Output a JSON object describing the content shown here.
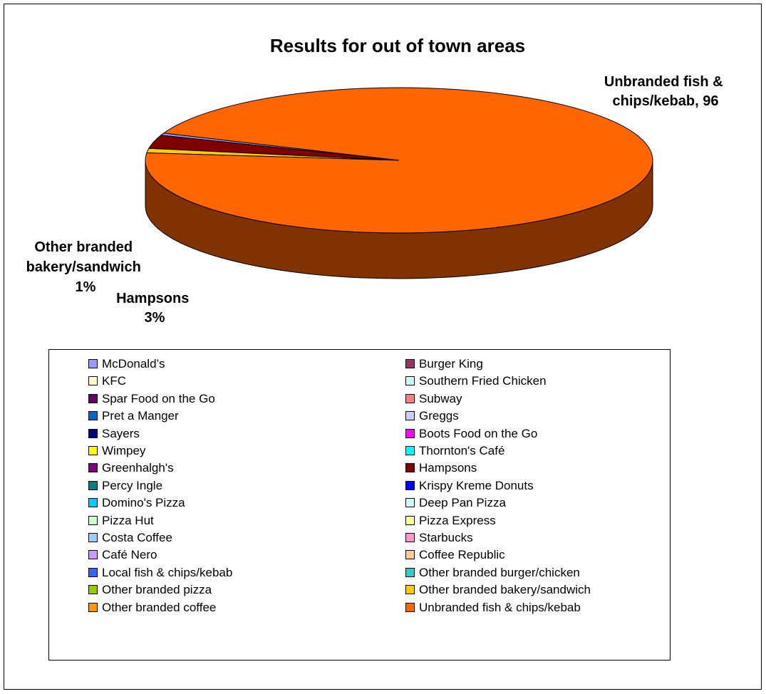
{
  "chart_data": {
    "type": "pie",
    "title": "Results for out of town areas",
    "series": [
      {
        "name": "McDonald’s",
        "value": 0.5,
        "color": "#9999FF"
      },
      {
        "name": "Burger King",
        "value": 0,
        "color": "#993366"
      },
      {
        "name": "KFC",
        "value": 0,
        "color": "#FFFFCC"
      },
      {
        "name": "Southern Fried Chicken",
        "value": 0,
        "color": "#CCFFFF"
      },
      {
        "name": "Spar Food on the Go",
        "value": 0,
        "color": "#660066"
      },
      {
        "name": "Subway",
        "value": 0,
        "color": "#FF8080"
      },
      {
        "name": "Pret a Manger",
        "value": 0,
        "color": "#0066CC"
      },
      {
        "name": "Greggs",
        "value": 0,
        "color": "#CCCCFF"
      },
      {
        "name": "Sayers",
        "value": 0,
        "color": "#000080"
      },
      {
        "name": "Boots Food on the Go",
        "value": 0,
        "color": "#FF00FF"
      },
      {
        "name": "Wimpey",
        "value": 0,
        "color": "#FFFF00"
      },
      {
        "name": "Thornton's Café",
        "value": 0,
        "color": "#00FFFF"
      },
      {
        "name": "Greenhalgh's",
        "value": 0,
        "color": "#800080"
      },
      {
        "name": "Hampsons",
        "value": 3,
        "color": "#800000"
      },
      {
        "name": "Percy Ingle",
        "value": 0,
        "color": "#008080"
      },
      {
        "name": "Krispy Kreme Donuts",
        "value": 0,
        "color": "#0000FF"
      },
      {
        "name": "Domino's Pizza",
        "value": 0,
        "color": "#00CCFF"
      },
      {
        "name": "Deep Pan Pizza",
        "value": 0,
        "color": "#CCFFFF"
      },
      {
        "name": "Pizza Hut",
        "value": 0,
        "color": "#CCFFCC"
      },
      {
        "name": "Pizza Express",
        "value": 0,
        "color": "#FFFF99"
      },
      {
        "name": "Costa Coffee",
        "value": 0,
        "color": "#99CCFF"
      },
      {
        "name": "Starbucks",
        "value": 0,
        "color": "#FF99CC"
      },
      {
        "name": "Café Nero",
        "value": 0,
        "color": "#CC99FF"
      },
      {
        "name": "Coffee Republic",
        "value": 0,
        "color": "#FFCC99"
      },
      {
        "name": "Local fish & chips/kebab",
        "value": 0,
        "color": "#3366FF"
      },
      {
        "name": "Other branded burger/chicken",
        "value": 0,
        "color": "#33CCCC"
      },
      {
        "name": "Other branded pizza",
        "value": 0,
        "color": "#99CC00"
      },
      {
        "name": "Other branded bakery/sandwich",
        "value": 1,
        "color": "#FFCC00"
      },
      {
        "name": "Other branded coffee",
        "value": 0,
        "color": "#FF9900"
      },
      {
        "name": "Unbranded fish & chips/kebab",
        "value": 96,
        "color": "#FF6600"
      }
    ],
    "data_labels": {
      "unbranded": [
        "Unbranded fish &",
        "chips/kebab, 96"
      ],
      "other_bakery": [
        "Other branded",
        "bakery/sandwich",
        "1%"
      ],
      "hampsons": [
        "Hampsons",
        "3%"
      ]
    },
    "legend_position": "bottom"
  }
}
